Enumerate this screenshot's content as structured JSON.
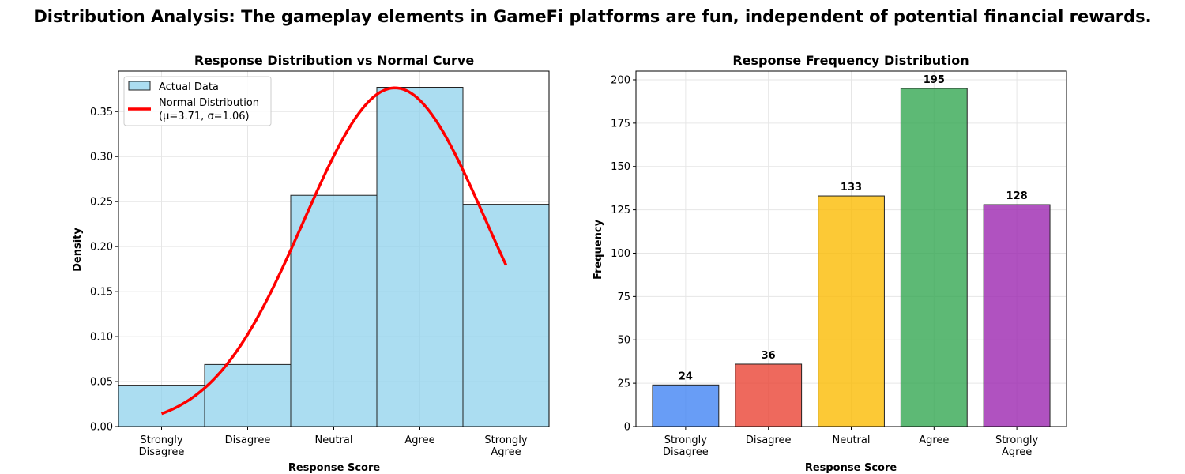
{
  "suptitle": "Distribution Analysis: The gameplay elements in GameFi platforms are fun, independent of potential financial rewards.",
  "chart_data": [
    {
      "type": "bar",
      "title": "Response Distribution vs Normal Curve",
      "xlabel": "Response Score",
      "ylabel": "Density",
      "categories": [
        "Strongly\nDisagree",
        "Disagree",
        "Neutral",
        "Agree",
        "Strongly\nAgree"
      ],
      "x": [
        1,
        2,
        3,
        4,
        5
      ],
      "xlim": [
        0.5,
        5.5
      ],
      "ylim": [
        0,
        0.395
      ],
      "yticks": [
        0.0,
        0.05,
        0.1,
        0.15,
        0.2,
        0.25,
        0.3,
        0.35
      ],
      "ytick_labels": [
        "0.00",
        "0.05",
        "0.10",
        "0.15",
        "0.20",
        "0.25",
        "0.30",
        "0.35"
      ],
      "grid": true,
      "legend_position": "top-left",
      "series": [
        {
          "name": "Actual Data",
          "type": "bar",
          "values": [
            0.046,
            0.069,
            0.257,
            0.377,
            0.247
          ],
          "color": "#87ceeb"
        },
        {
          "name": "Normal Distribution\n(μ=3.71, σ=1.06)",
          "type": "line",
          "mu": 3.71,
          "sigma": 1.06,
          "x_range": [
            1,
            5
          ],
          "color": "#ff0000"
        }
      ]
    },
    {
      "type": "bar",
      "title": "Response Frequency Distribution",
      "xlabel": "Response Score",
      "ylabel": "Frequency",
      "categories": [
        "Strongly\nDisagree",
        "Disagree",
        "Neutral",
        "Agree",
        "Strongly\nAgree"
      ],
      "values": [
        24,
        36,
        133,
        195,
        128
      ],
      "value_labels": [
        "24",
        "36",
        "133",
        "195",
        "128"
      ],
      "colors": [
        "#4285f4",
        "#ea4335",
        "#fbbc04",
        "#34a853",
        "#9c27b0"
      ],
      "ylim": [
        0,
        205
      ],
      "yticks": [
        0,
        25,
        50,
        75,
        100,
        125,
        150,
        175,
        200
      ],
      "ytick_labels": [
        "0",
        "25",
        "50",
        "75",
        "100",
        "125",
        "150",
        "175",
        "200"
      ],
      "grid": true
    }
  ]
}
